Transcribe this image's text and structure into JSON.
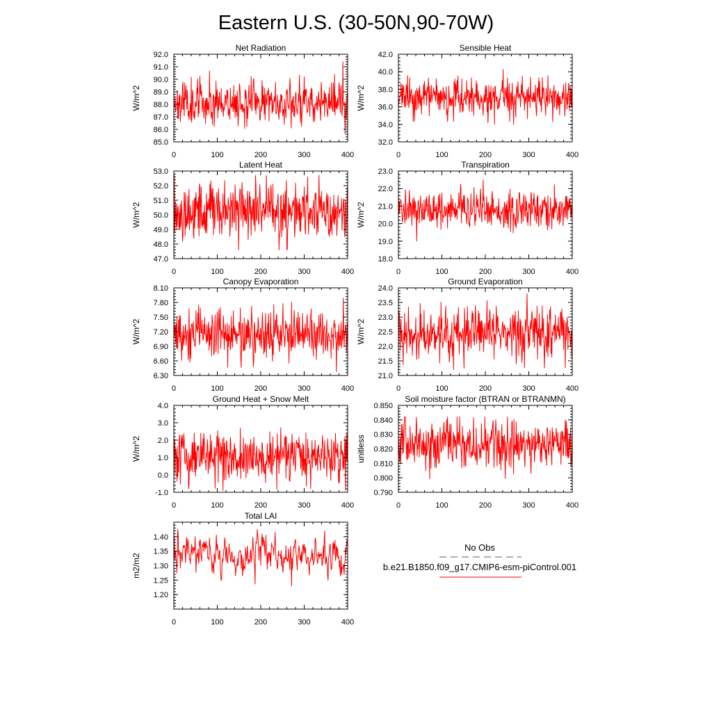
{
  "title": "Eastern U.S. (30-50N,90-70W)",
  "colors": {
    "model": "#ff0000",
    "obs": "#5a5a7a",
    "axis": "#000000"
  },
  "legend": {
    "obs_label": "No Obs",
    "model_label": "b.e21.B1850.f09_g17.CMIP6-esm-piControl.001"
  },
  "chart_data": [
    {
      "type": "line",
      "title": "Net Radiation",
      "ylabel": "W/m^2",
      "xlim": [
        0,
        400
      ],
      "ylim": [
        85.0,
        92.0
      ],
      "xticks": [
        "0",
        "100",
        "200",
        "300",
        "400"
      ],
      "yticks": [
        "85.0",
        "86.0",
        "87.0",
        "88.0",
        "89.0",
        "90.0",
        "91.0",
        "92.0"
      ],
      "mean": 88.2,
      "amplitude": 0.85,
      "ymin_clip": 85.3,
      "ymax_clip": 91.4,
      "seed": 11,
      "series": [
        {
          "name": "b.e21.B1850.f09_g17.CMIP6-esm-piControl.001",
          "n_points": 400
        }
      ]
    },
    {
      "type": "line",
      "title": "Sensible Heat",
      "ylabel": "W/m^2",
      "xlim": [
        0,
        400
      ],
      "ylim": [
        32.0,
        42.0
      ],
      "xticks": [
        "0",
        "100",
        "200",
        "300",
        "400"
      ],
      "yticks": [
        "32.0",
        "34.0",
        "36.0",
        "38.0",
        "40.0",
        "42.0"
      ],
      "mean": 37.0,
      "amplitude": 1.05,
      "ymin_clip": 34.0,
      "ymax_clip": 40.8,
      "seed": 23,
      "series": [
        {
          "name": "b.e21.B1850.f09_g17.CMIP6-esm-piControl.001",
          "n_points": 400
        }
      ]
    },
    {
      "type": "line",
      "title": "Latent Heat",
      "ylabel": "W/m^2",
      "xlim": [
        0,
        400
      ],
      "ylim": [
        47.0,
        53.0
      ],
      "xticks": [
        "0",
        "100",
        "200",
        "300",
        "400"
      ],
      "yticks": [
        "47.0",
        "48.0",
        "49.0",
        "50.0",
        "51.0",
        "52.0",
        "53.0"
      ],
      "mean": 50.3,
      "amplitude": 1.0,
      "ymin_clip": 47.6,
      "ymax_clip": 52.7,
      "seed": 37,
      "series": [
        {
          "name": "b.e21.B1850.f09_g17.CMIP6-esm-piControl.001",
          "n_points": 400
        }
      ]
    },
    {
      "type": "line",
      "title": "Transpiration",
      "ylabel": "W/m^2",
      "xlim": [
        0,
        400
      ],
      "ylim": [
        18.0,
        23.0
      ],
      "xticks": [
        "0",
        "100",
        "200",
        "300",
        "400"
      ],
      "yticks": [
        "18.0",
        "19.0",
        "20.0",
        "21.0",
        "22.0",
        "23.0"
      ],
      "mean": 20.8,
      "amplitude": 0.55,
      "ymin_clip": 19.0,
      "ymax_clip": 22.5,
      "seed": 41,
      "series": [
        {
          "name": "b.e21.B1850.f09_g17.CMIP6-esm-piControl.001",
          "n_points": 400
        }
      ]
    },
    {
      "type": "line",
      "title": "Canopy Evaporation",
      "ylabel": "W/m^2",
      "xlim": [
        0,
        400
      ],
      "ylim": [
        6.3,
        8.1
      ],
      "xticks": [
        "0",
        "100",
        "200",
        "300",
        "400"
      ],
      "yticks": [
        "6.30",
        "6.60",
        "6.90",
        "7.20",
        "7.50",
        "7.80",
        "8.10"
      ],
      "mean": 7.15,
      "amplitude": 0.27,
      "ymin_clip": 6.38,
      "ymax_clip": 7.9,
      "seed": 53,
      "series": [
        {
          "name": "b.e21.B1850.f09_g17.CMIP6-esm-piControl.001",
          "n_points": 400
        }
      ]
    },
    {
      "type": "line",
      "title": "Ground Evaporation",
      "ylabel": "W/m^2",
      "xlim": [
        0,
        400
      ],
      "ylim": [
        21.0,
        24.0
      ],
      "xticks": [
        "0",
        "100",
        "200",
        "300",
        "400"
      ],
      "yticks": [
        "21.0",
        "21.5",
        "22.0",
        "22.5",
        "23.0",
        "23.5",
        "24.0"
      ],
      "mean": 22.4,
      "amplitude": 0.42,
      "ymin_clip": 21.2,
      "ymax_clip": 23.8,
      "seed": 67,
      "series": [
        {
          "name": "b.e21.B1850.f09_g17.CMIP6-esm-piControl.001",
          "n_points": 400
        }
      ]
    },
    {
      "type": "line",
      "title": "Ground Heat + Snow Melt",
      "ylabel": "W/m^2",
      "xlim": [
        0,
        400
      ],
      "ylim": [
        -1.0,
        4.0
      ],
      "xticks": [
        "0",
        "100",
        "200",
        "300",
        "400"
      ],
      "yticks": [
        "-1.0",
        "0.0",
        "1.0",
        "2.0",
        "3.0",
        "4.0"
      ],
      "mean": 1.05,
      "amplitude": 0.75,
      "ymin_clip": -0.9,
      "ymax_clip": 3.6,
      "seed": 79,
      "series": [
        {
          "name": "b.e21.B1850.f09_g17.CMIP6-esm-piControl.001",
          "n_points": 400
        }
      ]
    },
    {
      "type": "line",
      "title": "Soil moisture factor (BTRAN or BTRANMN)",
      "ylabel": "unitless",
      "xlim": [
        0,
        400
      ],
      "ylim": [
        0.79,
        0.85
      ],
      "xticks": [
        "0",
        "100",
        "200",
        "300",
        "400"
      ],
      "yticks": [
        "0.790",
        "0.800",
        "0.810",
        "0.820",
        "0.830",
        "0.840",
        "0.850"
      ],
      "mean": 0.823,
      "amplitude": 0.0085,
      "ymin_clip": 0.795,
      "ymax_clip": 0.842,
      "seed": 83,
      "series": [
        {
          "name": "b.e21.B1850.f09_g17.CMIP6-esm-piControl.001",
          "n_points": 400
        }
      ]
    },
    {
      "type": "line",
      "title": "Total LAI",
      "ylabel": "m2/m2",
      "xlim": [
        0,
        400
      ],
      "ylim": [
        1.15,
        1.45
      ],
      "xticks": [
        "0",
        "100",
        "200",
        "300",
        "400"
      ],
      "yticks": [
        "1.20",
        "1.25",
        "1.30",
        "1.35",
        "1.40"
      ],
      "mean": 1.335,
      "amplitude": 0.035,
      "ymin_clip": 1.18,
      "ymax_clip": 1.425,
      "smooth": 0.6,
      "seed": 97,
      "series": [
        {
          "name": "b.e21.B1850.f09_g17.CMIP6-esm-piControl.001",
          "n_points": 400
        }
      ]
    }
  ]
}
